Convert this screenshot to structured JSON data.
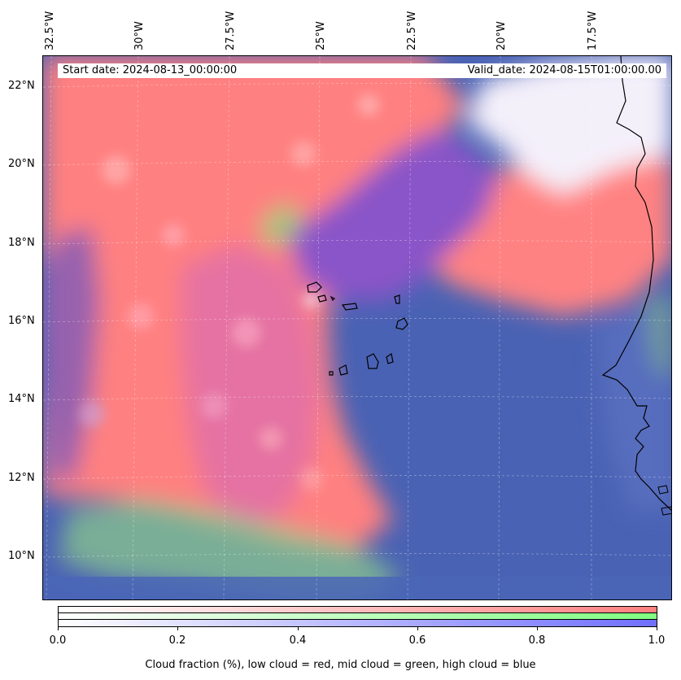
{
  "map": {
    "start_date": "Start date: 2024-08-13_00:00:00",
    "valid_date": "Valid_date: 2024-08-15T01:00:00.00",
    "longitude_labels": [
      "32.5°W",
      "30°W",
      "27.5°W",
      "25°W",
      "22.5°W",
      "20°W",
      "17.5°W"
    ],
    "latitude_labels": [
      "22°N",
      "20°N",
      "18°N",
      "16°N",
      "14°N",
      "12°N",
      "10°N"
    ],
    "gridlines": true,
    "colors": {
      "low_cloud": "#ff7f7f",
      "mid_cloud": "#7fff7f",
      "high_cloud": "#6f6fff",
      "clear_ocean": "#4a66b0",
      "coastline": "#000000"
    }
  },
  "colorbar": {
    "tick_labels": [
      "0.0",
      "0.2",
      "0.4",
      "0.6",
      "0.8",
      "1.0"
    ],
    "range": [
      0.0,
      1.0
    ],
    "caption": "Cloud fraction (%), low cloud = red, mid cloud = green, high cloud = blue"
  }
}
